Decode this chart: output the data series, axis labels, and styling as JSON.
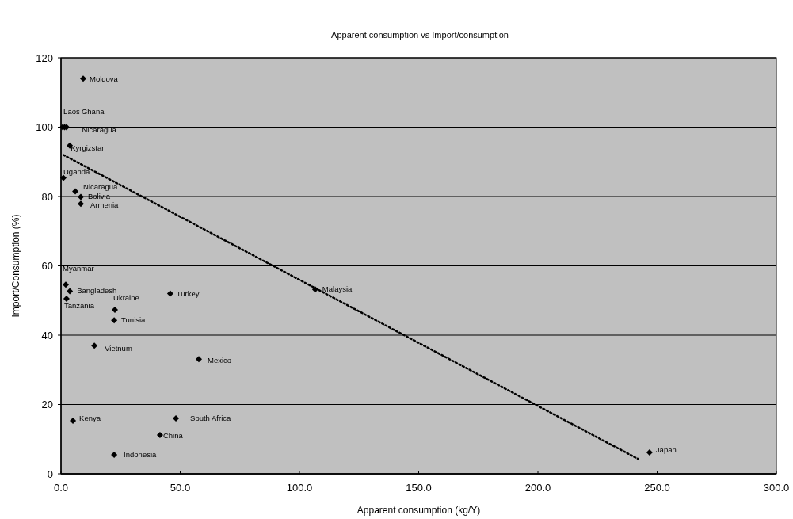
{
  "chart_data": {
    "type": "scatter",
    "title": "Apparent consumption vs Import/consumption",
    "xlabel": "Apparent consumption (kg/Y)",
    "ylabel": "Import/Consumption (%)",
    "xlim": [
      0,
      300
    ],
    "xticks": [
      {
        "value": 0,
        "label": "0.0"
      },
      {
        "value": 50,
        "label": "50.0"
      },
      {
        "value": 100,
        "label": "100.0"
      },
      {
        "value": 150,
        "label": "150.0"
      },
      {
        "value": 200,
        "label": "200.0"
      },
      {
        "value": 250,
        "label": "250.0"
      },
      {
        "value": 300,
        "label": "300.0"
      }
    ],
    "ylim": [
      0,
      120
    ],
    "yticks": [
      0,
      20,
      40,
      60,
      80,
      100,
      120
    ],
    "grid": "y",
    "series": [
      {
        "color": "#000000",
        "marker": "diamond",
        "x": [
          9.3,
          0.7,
          2.3,
          1.5,
          3.7,
          1.0,
          6.0,
          8.3,
          8.3,
          2.0,
          3.7,
          2.3,
          22.6,
          22.3,
          45.8,
          106.6,
          14.0,
          57.8,
          5.0,
          48.2,
          41.5,
          22.3,
          246.8
        ],
        "values": [
          114,
          100,
          100,
          100,
          94.7,
          85.4,
          81.5,
          79.9,
          77.9,
          54.6,
          52.7,
          50.5,
          47.3,
          44.3,
          52,
          53.2,
          37,
          33.1,
          15.3,
          16,
          11.2,
          5.5,
          6.2
        ]
      },
      {
        "type": "line",
        "color": "#000000",
        "line_style": "dotted",
        "marker": "none",
        "x": [
          1,
          242
        ],
        "values": [
          92,
          4.3
        ]
      }
    ],
    "annotations": [
      {
        "text": "Moldova",
        "x": 9.3,
        "y": 114
      },
      {
        "text": "Laos",
        "x": 0.7,
        "y": 100
      },
      {
        "text": "Ghana",
        "x": 2.3,
        "y": 100
      },
      {
        "text": "Nicaragua",
        "x": 1.5,
        "y": 100
      },
      {
        "text": "Kyrgizstan",
        "x": 3.7,
        "y": 94.7
      },
      {
        "text": "Uganda",
        "x": 1.0,
        "y": 85.4
      },
      {
        "text": "Nicaragua",
        "x": 6.0,
        "y": 81.5
      },
      {
        "text": "Bolivia",
        "x": 8.3,
        "y": 79.9
      },
      {
        "text": "Armenia",
        "x": 8.3,
        "y": 77.9
      },
      {
        "text": "Myanmar",
        "x": 2.0,
        "y": 54.6
      },
      {
        "text": "Bangladesh",
        "x": 3.7,
        "y": 52.7
      },
      {
        "text": "Tanzania",
        "x": 2.3,
        "y": 50.5
      },
      {
        "text": "Ukraine",
        "x": 22.6,
        "y": 47.3
      },
      {
        "text": "Tunisia",
        "x": 22.3,
        "y": 44.3
      },
      {
        "text": "Turkey",
        "x": 45.8,
        "y": 52
      },
      {
        "text": "Malaysia",
        "x": 106.6,
        "y": 53.2
      },
      {
        "text": "Vietnum",
        "x": 14.0,
        "y": 37
      },
      {
        "text": "Mexico",
        "x": 57.8,
        "y": 33.1
      },
      {
        "text": "Kenya",
        "x": 5.0,
        "y": 15.3
      },
      {
        "text": "South Africa",
        "x": 48.2,
        "y": 16
      },
      {
        "text": "China",
        "x": 41.5,
        "y": 11.2
      },
      {
        "text": "Indonesia",
        "x": 22.3,
        "y": 5.5
      },
      {
        "text": "Japan",
        "x": 246.8,
        "y": 6.2
      }
    ]
  }
}
